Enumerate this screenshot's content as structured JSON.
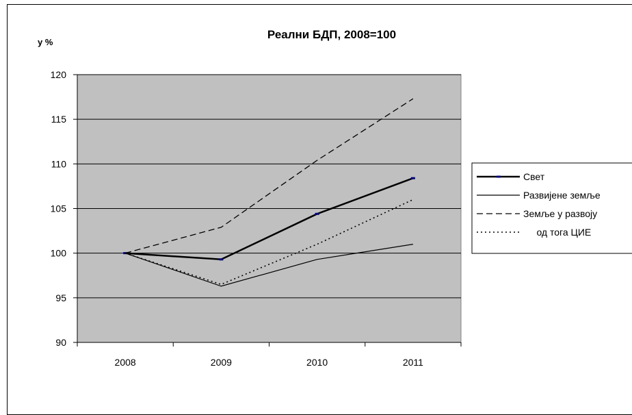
{
  "chart_data": {
    "type": "line",
    "title": "Реални БДП, 2008=100",
    "ylabel": "у %",
    "xlabel": "",
    "categories": [
      "2008",
      "2009",
      "2010",
      "2011"
    ],
    "ylim": [
      90,
      120
    ],
    "yticks": [
      90,
      95,
      100,
      105,
      110,
      115,
      120
    ],
    "grid": true,
    "plot_background": "#c0c0c0",
    "legend_position": "right",
    "series": [
      {
        "name": "Свет",
        "values": [
          100,
          99.3,
          104.4,
          108.4
        ],
        "style": "solid-thick",
        "marker": true,
        "color": "#000000",
        "marker_color": "#000080"
      },
      {
        "name": "Развијене земље",
        "values": [
          100,
          96.3,
          99.3,
          101.0
        ],
        "style": "solid-thin",
        "marker": false,
        "color": "#000000"
      },
      {
        "name": "Земље у развоју",
        "values": [
          100,
          102.9,
          110.4,
          117.3
        ],
        "style": "dashed",
        "marker": false,
        "color": "#000000"
      },
      {
        "name": "     од тога ЦИЕ",
        "values": [
          100,
          96.5,
          101.0,
          106.0
        ],
        "style": "dotted",
        "marker": false,
        "color": "#000000"
      }
    ]
  }
}
